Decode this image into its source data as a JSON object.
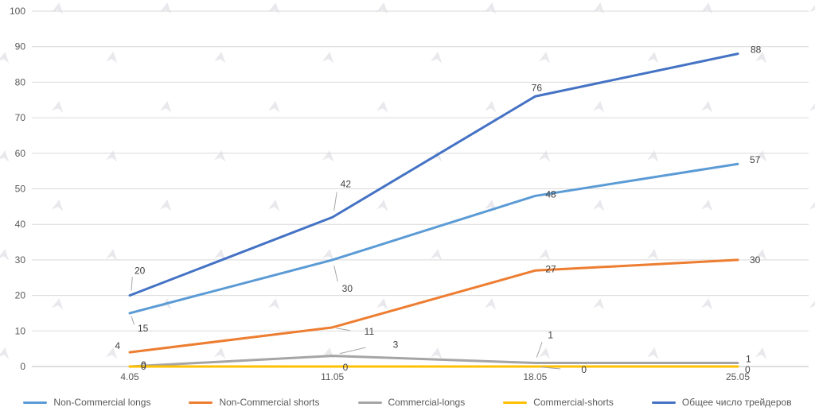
{
  "chart_data": {
    "type": "line",
    "categories": [
      "4.05",
      "11.05",
      "18.05",
      "25.05"
    ],
    "series": [
      {
        "name": "Non-Commercial longs",
        "color": "#5B9BD5",
        "values": [
          15,
          30,
          48,
          57
        ]
      },
      {
        "name": "Non-Commercial shorts",
        "color": "#ED7D31",
        "values": [
          4,
          11,
          27,
          30
        ]
      },
      {
        "name": "Commercial-longs",
        "color": "#A5A5A5",
        "values": [
          0,
          3,
          1,
          1
        ]
      },
      {
        "name": "Commercial-shorts",
        "color": "#FFC000",
        "values": [
          0,
          0,
          0,
          0
        ]
      },
      {
        "name": "Общее число трейдеров",
        "color": "#4472C4",
        "values": [
          20,
          42,
          76,
          88
        ]
      }
    ],
    "title": "",
    "xlabel": "",
    "ylabel": "",
    "ylim": [
      0,
      100
    ],
    "ytick_step": 10,
    "yticks": [
      0,
      10,
      20,
      30,
      40,
      50,
      60,
      70,
      80,
      90,
      100
    ],
    "grid": true,
    "data_labels": true,
    "legend_position": "bottom",
    "axis_text_color": "#595959",
    "label_text_color": "#404040",
    "grid_color": "#D9D9D9",
    "axis_line_color": "#BFBFBF",
    "leader_line_color": "#A6A6A6",
    "watermark_color": "#E5E5EA",
    "background": "#FFFFFF"
  }
}
